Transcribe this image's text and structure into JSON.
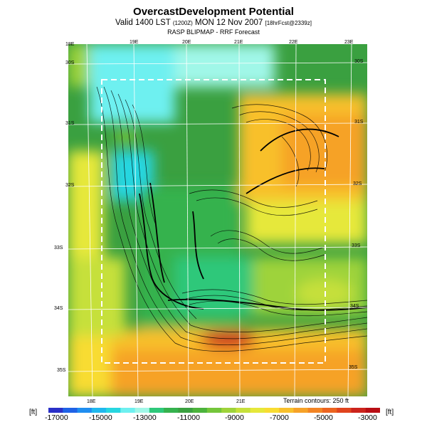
{
  "header": {
    "title": "OvercastDevelopment Potential",
    "subtitle_main": "Valid 1400 LST",
    "subtitle_small1": "(1200Z)",
    "subtitle_mid": "MON 12 Nov 2007",
    "subtitle_small2": "[18hrFcst@2339z]",
    "source": "RASP BLIPMAP - RRF Forecast"
  },
  "map": {
    "top_lon_labels": [
      "18E",
      "19E",
      "20E",
      "21E",
      "22E",
      "23E"
    ],
    "bottom_lon_labels": [
      "18E",
      "19E",
      "20E",
      "21E"
    ],
    "left_lat_labels": [
      "30S",
      "31S",
      "32S",
      "33S",
      "34S",
      "35S"
    ],
    "right_lat_labels": [
      "30S",
      "31S",
      "32S",
      "33S",
      "34S",
      "35S"
    ],
    "terrain_note": "Terrain contours: 250 ft"
  },
  "colorbar": {
    "unit": "[ft]",
    "labels": [
      "-17000",
      "-15000",
      "-13000",
      "-11000",
      "-9000",
      "-7000",
      "-5000",
      "-3000"
    ],
    "colors": [
      "#2a30c8",
      "#1f62e6",
      "#1f8ef0",
      "#20b8ee",
      "#28d6e0",
      "#6ef0f0",
      "#a0f7e8",
      "#2ec87a",
      "#35b24e",
      "#3aa040",
      "#4cb33c",
      "#74c63a",
      "#9ed33a",
      "#c6e03a",
      "#e6e83a",
      "#f8dc32",
      "#f8c02c",
      "#f6a228",
      "#f28424",
      "#ec6420",
      "#e0441e",
      "#cc241c",
      "#b80e14"
    ]
  }
}
